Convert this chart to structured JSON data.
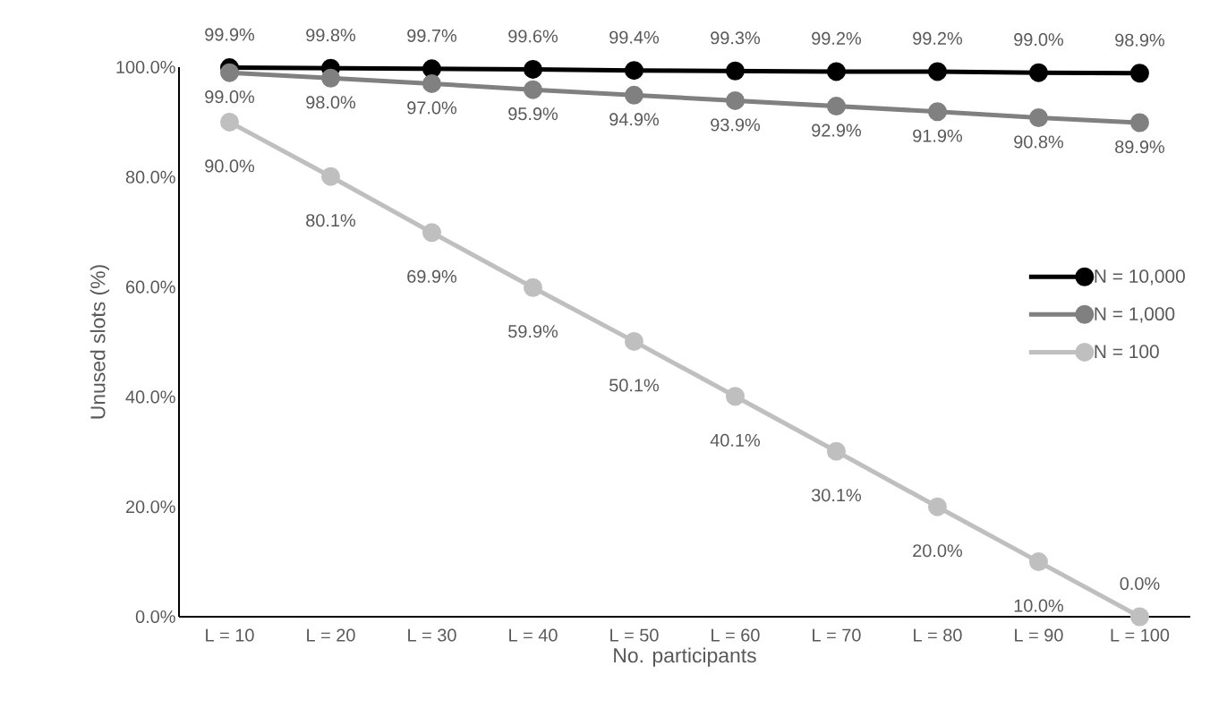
{
  "chart_data": {
    "type": "line",
    "xlabel": "No. participants",
    "ylabel": "Unused slots (%)",
    "categories": [
      "L = 10",
      "L = 20",
      "L = 30",
      "L = 40",
      "L = 50",
      "L = 60",
      "L = 70",
      "L = 80",
      "L = 90",
      "L = 100"
    ],
    "series": [
      {
        "name": "N = 10,000",
        "color": "#000000",
        "values": [
          99.9,
          99.8,
          99.7,
          99.6,
          99.4,
          99.3,
          99.2,
          99.2,
          99.0,
          98.9
        ],
        "value_labels": [
          "99.9%",
          "99.8%",
          "99.7%",
          "99.6%",
          "99.4%",
          "99.3%",
          "99.2%",
          "99.2%",
          "99.0%",
          "98.9%"
        ]
      },
      {
        "name": "N = 1,000",
        "color": "#808080",
        "values": [
          99.0,
          98.0,
          97.0,
          95.9,
          94.9,
          93.9,
          92.9,
          91.9,
          90.8,
          89.9
        ],
        "value_labels": [
          "99.0%",
          "98.0%",
          "97.0%",
          "95.9%",
          "94.9%",
          "93.9%",
          "92.9%",
          "91.9%",
          "90.8%",
          "89.9%"
        ]
      },
      {
        "name": "N = 100",
        "color": "#bfbfbf",
        "values": [
          90.0,
          80.1,
          69.9,
          59.9,
          50.1,
          40.1,
          30.1,
          20.0,
          10.0,
          0.0
        ],
        "value_labels": [
          "90.0%",
          "80.1%",
          "69.9%",
          "59.9%",
          "50.1%",
          "40.1%",
          "30.1%",
          "20.0%",
          "10.0%",
          "0.0%"
        ]
      }
    ],
    "ylim": [
      0,
      100
    ],
    "yticks": [
      {
        "value": 0,
        "label": "0.0%"
      },
      {
        "value": 20,
        "label": "20.0%"
      },
      {
        "value": 40,
        "label": "40.0%"
      },
      {
        "value": 60,
        "label": "60.0%"
      },
      {
        "value": 80,
        "label": "80.0%"
      },
      {
        "value": 100,
        "label": "100.0%"
      }
    ],
    "legend": "right",
    "marker": "circle",
    "line_style": "solid",
    "grid": false
  }
}
